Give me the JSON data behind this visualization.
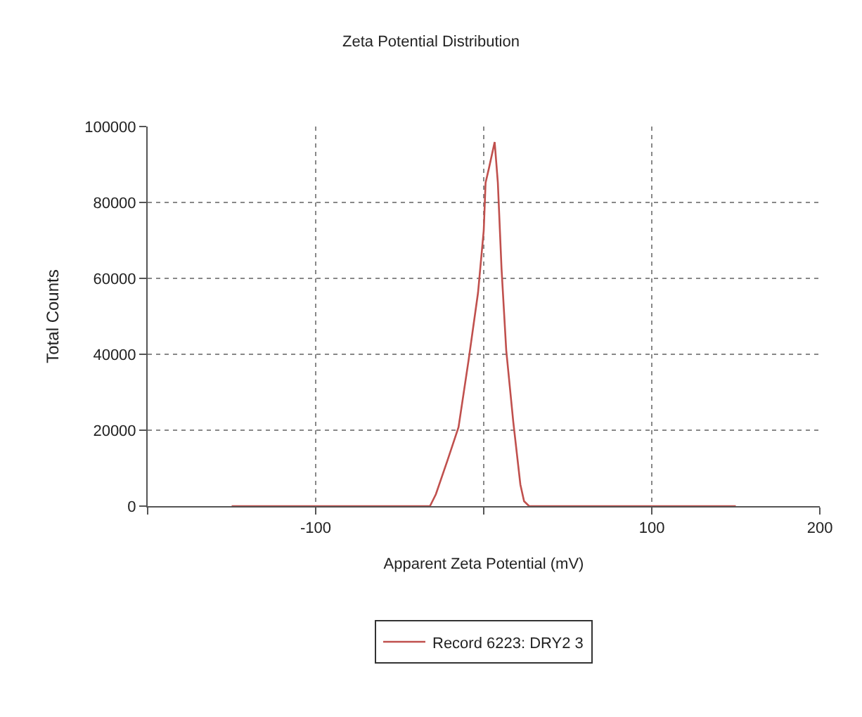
{
  "chart_data": {
    "type": "line",
    "title": "Zeta Potential Distribution",
    "xlabel": "Apparent Zeta Potential (mV)",
    "ylabel": "Total Counts",
    "x": [
      -150,
      -32,
      -28.5,
      -21.6,
      -15,
      -9,
      -3.4,
      0,
      1.1,
      3.1,
      6.5,
      8.4,
      10.6,
      13.4,
      17.6,
      21.8,
      24,
      27,
      150
    ],
    "series": [
      {
        "name": "Record 6223: DRY2 3",
        "color": "#c0504d",
        "values": [
          0,
          0,
          3100,
          12000,
          20800,
          38500,
          56200,
          72600,
          85200,
          89000,
          95900,
          85200,
          62500,
          41000,
          22100,
          5700,
          1300,
          0,
          0
        ]
      }
    ],
    "xlim": [
      -200,
      200
    ],
    "xticks": [
      {
        "value": -200,
        "label": null
      },
      -100,
      {
        "value": 0,
        "label": null
      },
      100,
      200
    ],
    "ylim": [
      0,
      100000
    ],
    "yticks": [
      0,
      20000,
      40000,
      60000,
      80000,
      100000
    ],
    "grid": true,
    "legend": "bottom",
    "line_style": "solid",
    "marker": "none"
  }
}
